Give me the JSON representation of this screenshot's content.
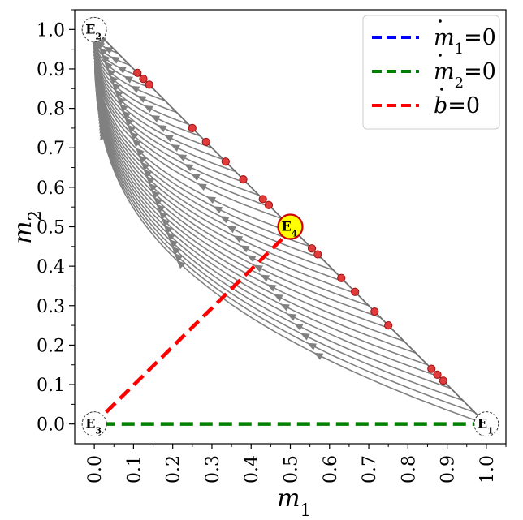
{
  "chart_data": {
    "type": "phase_portrait",
    "title": "",
    "xlabel": "m",
    "xlabel_sub": "1",
    "ylabel": "m",
    "ylabel_sub": "2",
    "xlim": [
      -0.05,
      1.05
    ],
    "ylim": [
      -0.05,
      1.05
    ],
    "xticks": [
      "0.0",
      "0.1",
      "0.2",
      "0.3",
      "0.4",
      "0.5",
      "0.6",
      "0.7",
      "0.8",
      "0.9",
      "1.0"
    ],
    "yticks": [
      "0.0",
      "0.1",
      "0.2",
      "0.3",
      "0.4",
      "0.5",
      "0.6",
      "0.7",
      "0.8",
      "0.9",
      "1.0"
    ],
    "grid": false,
    "legend_position": "top-right",
    "legend": [
      {
        "var": "m",
        "sub": "1",
        "rhs": "=0",
        "color": "#0000ff"
      },
      {
        "var": "m",
        "sub": "2",
        "rhs": "=0",
        "color": "#008000"
      },
      {
        "var": "b",
        "sub": "",
        "rhs": "=0",
        "color": "#ff0000"
      }
    ],
    "boundary_line": {
      "from": [
        0,
        1
      ],
      "to": [
        1,
        0
      ],
      "color": "#6e6e6e"
    },
    "nullclines": [
      {
        "name": "m2dot=0",
        "color": "#008000",
        "points": [
          [
            0.02,
            0.0
          ],
          [
            0.97,
            0.0
          ]
        ]
      },
      {
        "name": "bdot=0",
        "color": "#ff0000",
        "points": [
          [
            0.03,
            0.03
          ],
          [
            0.48,
            0.47
          ]
        ]
      }
    ],
    "equilibria": [
      {
        "label": "E",
        "sub": "1",
        "x": 1.0,
        "y": 0.0,
        "style": "dashed"
      },
      {
        "label": "E",
        "sub": "2",
        "x": 0.0,
        "y": 1.0,
        "style": "dashed"
      },
      {
        "label": "E",
        "sub": "3",
        "x": 0.0,
        "y": 0.0,
        "style": "dashed"
      },
      {
        "label": "E",
        "sub": "4",
        "x": 0.5,
        "y": 0.5,
        "style": "filled",
        "fill": "#ffff00",
        "edge": "#cc0000"
      }
    ],
    "boundary_points": [
      0.11,
      0.125,
      0.14,
      0.25,
      0.285,
      0.335,
      0.38,
      0.43,
      0.445,
      0.555,
      0.57,
      0.63,
      0.665,
      0.715,
      0.75,
      0.86,
      0.875,
      0.89
    ],
    "stream_color": "#808080",
    "streamline_starts": [
      0.0,
      0.03,
      0.06,
      0.09,
      0.12,
      0.15,
      0.18,
      0.21,
      0.24,
      0.27,
      0.3,
      0.33,
      0.36,
      0.39,
      0.42,
      0.45,
      0.48,
      0.52,
      0.55,
      0.58,
      0.61,
      0.64,
      0.67,
      0.7,
      0.73,
      0.76,
      0.79,
      0.82,
      0.85,
      0.88,
      0.91,
      0.94,
      0.97
    ]
  }
}
